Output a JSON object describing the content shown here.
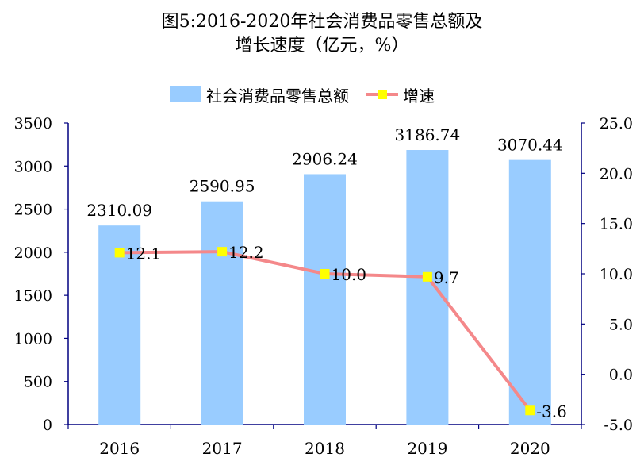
{
  "title": {
    "line1": "图5:2016-2020年社会消费品零售总额及",
    "line2": "增长速度（亿元，%）"
  },
  "legend": {
    "bar_label": "社会消费品零售总额",
    "line_label": "增速"
  },
  "colors": {
    "bar": "#99CCFF",
    "line": "#F4888A",
    "marker": "#FFFF00",
    "axis": "#000080"
  },
  "chart_data": {
    "type": "bar",
    "categories": [
      "2016",
      "2017",
      "2018",
      "2019",
      "2020"
    ],
    "series": [
      {
        "name": "社会消费品零售总额",
        "type": "bar",
        "axis": "left",
        "values": [
          2310.09,
          2590.95,
          2906.24,
          3186.74,
          3070.44
        ],
        "labels": [
          "2310.09",
          "2590.95",
          "2906.24",
          "3186.74",
          "3070.44"
        ]
      },
      {
        "name": "增速",
        "type": "line",
        "axis": "right",
        "values": [
          12.1,
          12.2,
          10.0,
          9.7,
          -3.6
        ],
        "labels": [
          "12.1",
          "12.2",
          "10.0",
          "9.7",
          "-3.6"
        ]
      }
    ],
    "y_left": {
      "min": 0,
      "max": 3500,
      "ticks": [
        "0",
        "500",
        "1000",
        "1500",
        "2000",
        "2500",
        "3000",
        "3500"
      ]
    },
    "y_right": {
      "min": -5,
      "max": 25,
      "ticks": [
        "-5.0",
        "0.0",
        "5.0",
        "10.0",
        "15.0",
        "20.0",
        "25.0"
      ]
    },
    "grid": false,
    "legend_position": "top"
  }
}
